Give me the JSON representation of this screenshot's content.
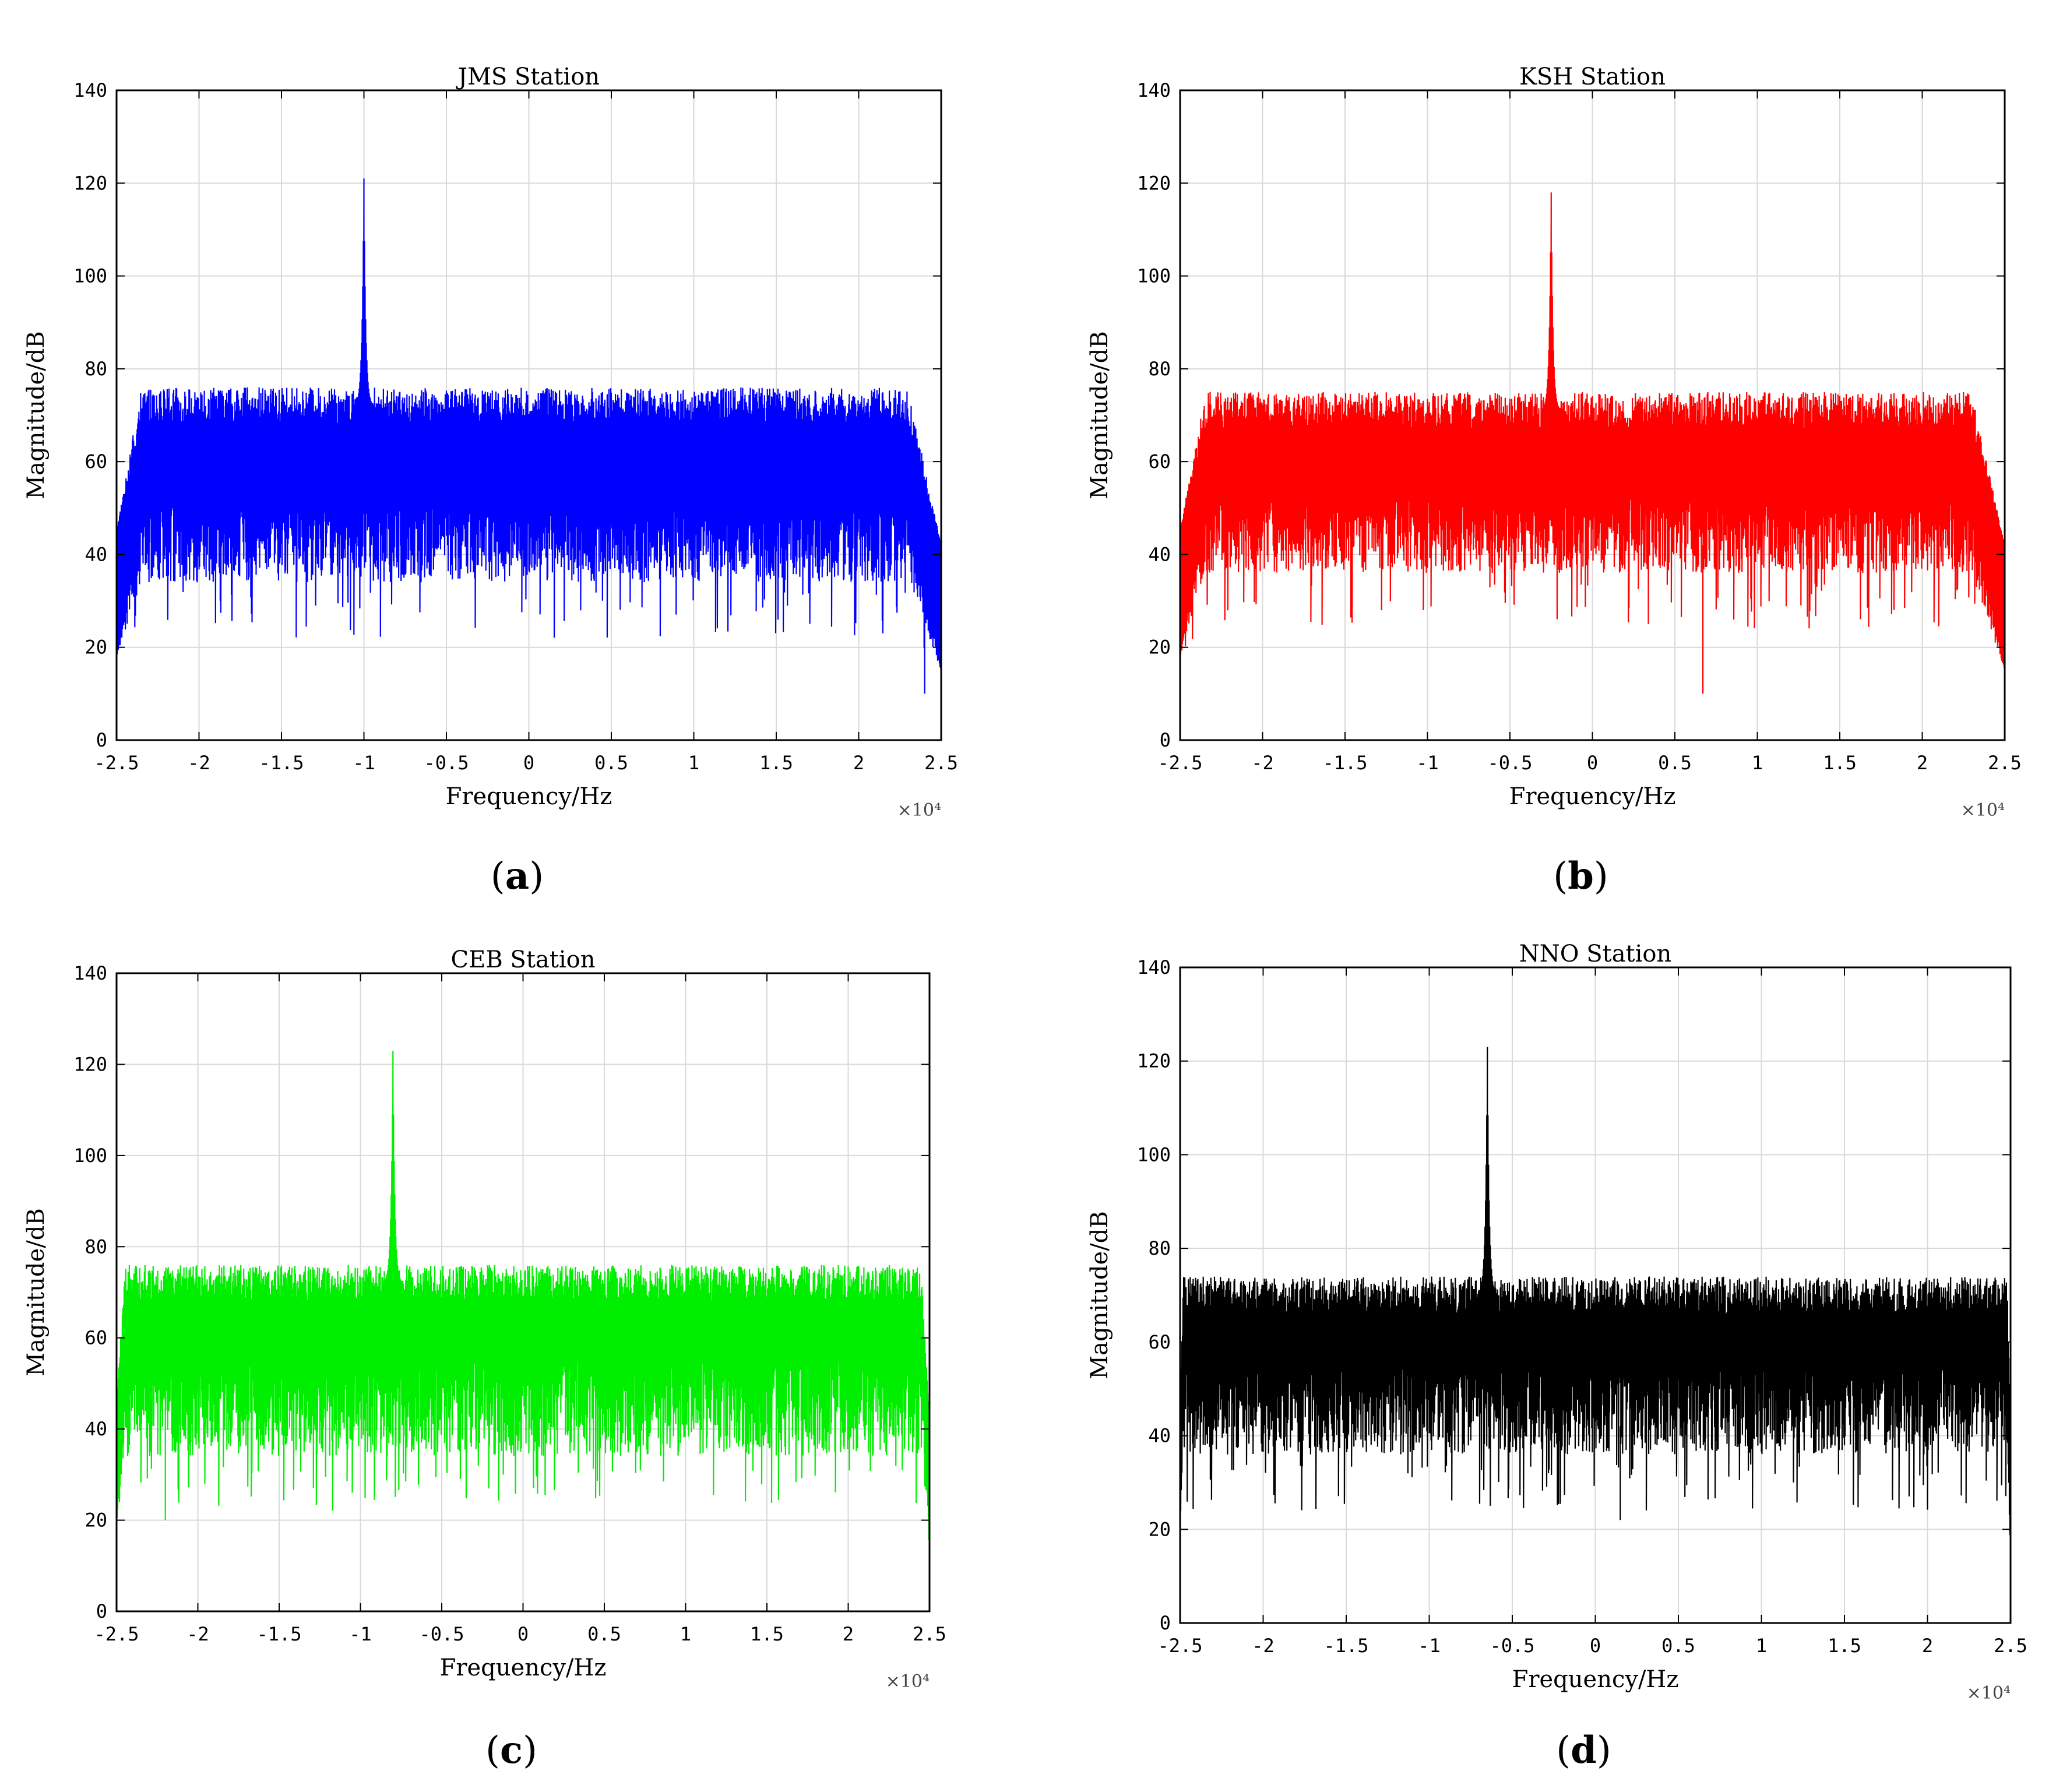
{
  "chart_data": [
    {
      "type": "line",
      "title": "JMS Station",
      "xlabel": "Frequency/Hz",
      "ylabel": "Magnitude/dB",
      "x_multiplier": "×10⁴",
      "caption_letter": "a",
      "color": "#0000ff",
      "xlim": [
        -2.5,
        2.5
      ],
      "ylim": [
        0,
        140
      ],
      "xticks": [
        -2.5,
        -2,
        -1.5,
        -1,
        -0.5,
        0,
        0.5,
        1,
        1.5,
        2,
        2.5
      ],
      "xtick_labels": [
        "-2.5",
        "-2",
        "-1.5",
        "-1",
        "-0.5",
        "0",
        "0.5",
        "1",
        "1.5",
        "2",
        "2.5"
      ],
      "yticks": [
        0,
        20,
        40,
        60,
        80,
        100,
        120,
        140
      ],
      "ytick_labels": [
        "0",
        "20",
        "40",
        "60",
        "80",
        "100",
        "120",
        "140"
      ],
      "grid": true,
      "peak": {
        "x": -1.0,
        "y": 121
      },
      "envelope": {
        "upper": 72,
        "lower": 40,
        "floor": 50
      },
      "edge_rolloff": {
        "left": -2.35,
        "right": 2.3
      },
      "min_spike": {
        "x": 2.4,
        "y": 10
      }
    },
    {
      "type": "line",
      "title": "KSH Station",
      "xlabel": "Frequency/Hz",
      "ylabel": "Magnitude/dB",
      "x_multiplier": "×10⁴",
      "caption_letter": "b",
      "color": "#ff0000",
      "xlim": [
        -2.5,
        2.5
      ],
      "ylim": [
        0,
        140
      ],
      "xticks": [
        -2.5,
        -2,
        -1.5,
        -1,
        -0.5,
        0,
        0.5,
        1,
        1.5,
        2,
        2.5
      ],
      "xtick_labels": [
        "-2.5",
        "-2",
        "-1.5",
        "-1",
        "-0.5",
        "0",
        "0.5",
        "1",
        "1.5",
        "2",
        "2.5"
      ],
      "yticks": [
        0,
        20,
        40,
        60,
        80,
        100,
        120,
        140
      ],
      "ytick_labels": [
        "0",
        "20",
        "40",
        "60",
        "80",
        "100",
        "120",
        "140"
      ],
      "grid": true,
      "peak": {
        "x": -0.25,
        "y": 118
      },
      "envelope": {
        "upper": 71,
        "lower": 42,
        "floor": 52
      },
      "edge_rolloff": {
        "left": -2.35,
        "right": 2.3
      },
      "min_spike": {
        "x": 0.67,
        "y": 10
      }
    },
    {
      "type": "line",
      "title": "CEB Station",
      "xlabel": "Frequency/Hz",
      "ylabel": "Magnitude/dB",
      "x_multiplier": "×10⁴",
      "caption_letter": "c",
      "color": "#00ee00",
      "xlim": [
        -2.5,
        2.5
      ],
      "ylim": [
        0,
        140
      ],
      "xticks": [
        -2.5,
        -2,
        -1.5,
        -1,
        -0.5,
        0,
        0.5,
        1,
        1.5,
        2,
        2.5
      ],
      "xtick_labels": [
        "-2.5",
        "-2",
        "-1.5",
        "-1",
        "-0.5",
        "0",
        "0.5",
        "1",
        "1.5",
        "2",
        "2.5"
      ],
      "yticks": [
        0,
        20,
        40,
        60,
        80,
        100,
        120,
        140
      ],
      "ytick_labels": [
        "0",
        "20",
        "40",
        "60",
        "80",
        "100",
        "120",
        "140"
      ],
      "grid": true,
      "peak": {
        "x": -0.8,
        "y": 123
      },
      "envelope": {
        "upper": 72,
        "lower": 40,
        "floor": 55
      },
      "edge_rolloff": {
        "left": -2.45,
        "right": 2.45
      },
      "min_spike": {
        "x": -2.2,
        "y": 20
      }
    },
    {
      "type": "line",
      "title": "NNO Station",
      "xlabel": "Frequency/Hz",
      "ylabel": "Magnitude/dB",
      "x_multiplier": "×10⁴",
      "caption_letter": "d",
      "color": "#000000",
      "xlim": [
        -2.5,
        2.5
      ],
      "ylim": [
        0,
        140
      ],
      "xticks": [
        -2.5,
        -2,
        -1.5,
        -1,
        -0.5,
        0,
        0.5,
        1,
        1.5,
        2,
        2.5
      ],
      "xtick_labels": [
        "-2.5",
        "-2",
        "-1.5",
        "-1",
        "-0.5",
        "0",
        "0.5",
        "1",
        "1.5",
        "2",
        "2.5"
      ],
      "yticks": [
        0,
        20,
        40,
        60,
        80,
        100,
        120,
        140
      ],
      "ytick_labels": [
        "0",
        "20",
        "40",
        "60",
        "80",
        "100",
        "120",
        "140"
      ],
      "grid": true,
      "peak": {
        "x": -0.65,
        "y": 123
      },
      "envelope": {
        "upper": 70,
        "lower": 42,
        "floor": 55
      },
      "edge_rolloff": {
        "left": -2.48,
        "right": 2.48
      },
      "min_spike": {
        "x": 0.15,
        "y": 22
      }
    }
  ]
}
